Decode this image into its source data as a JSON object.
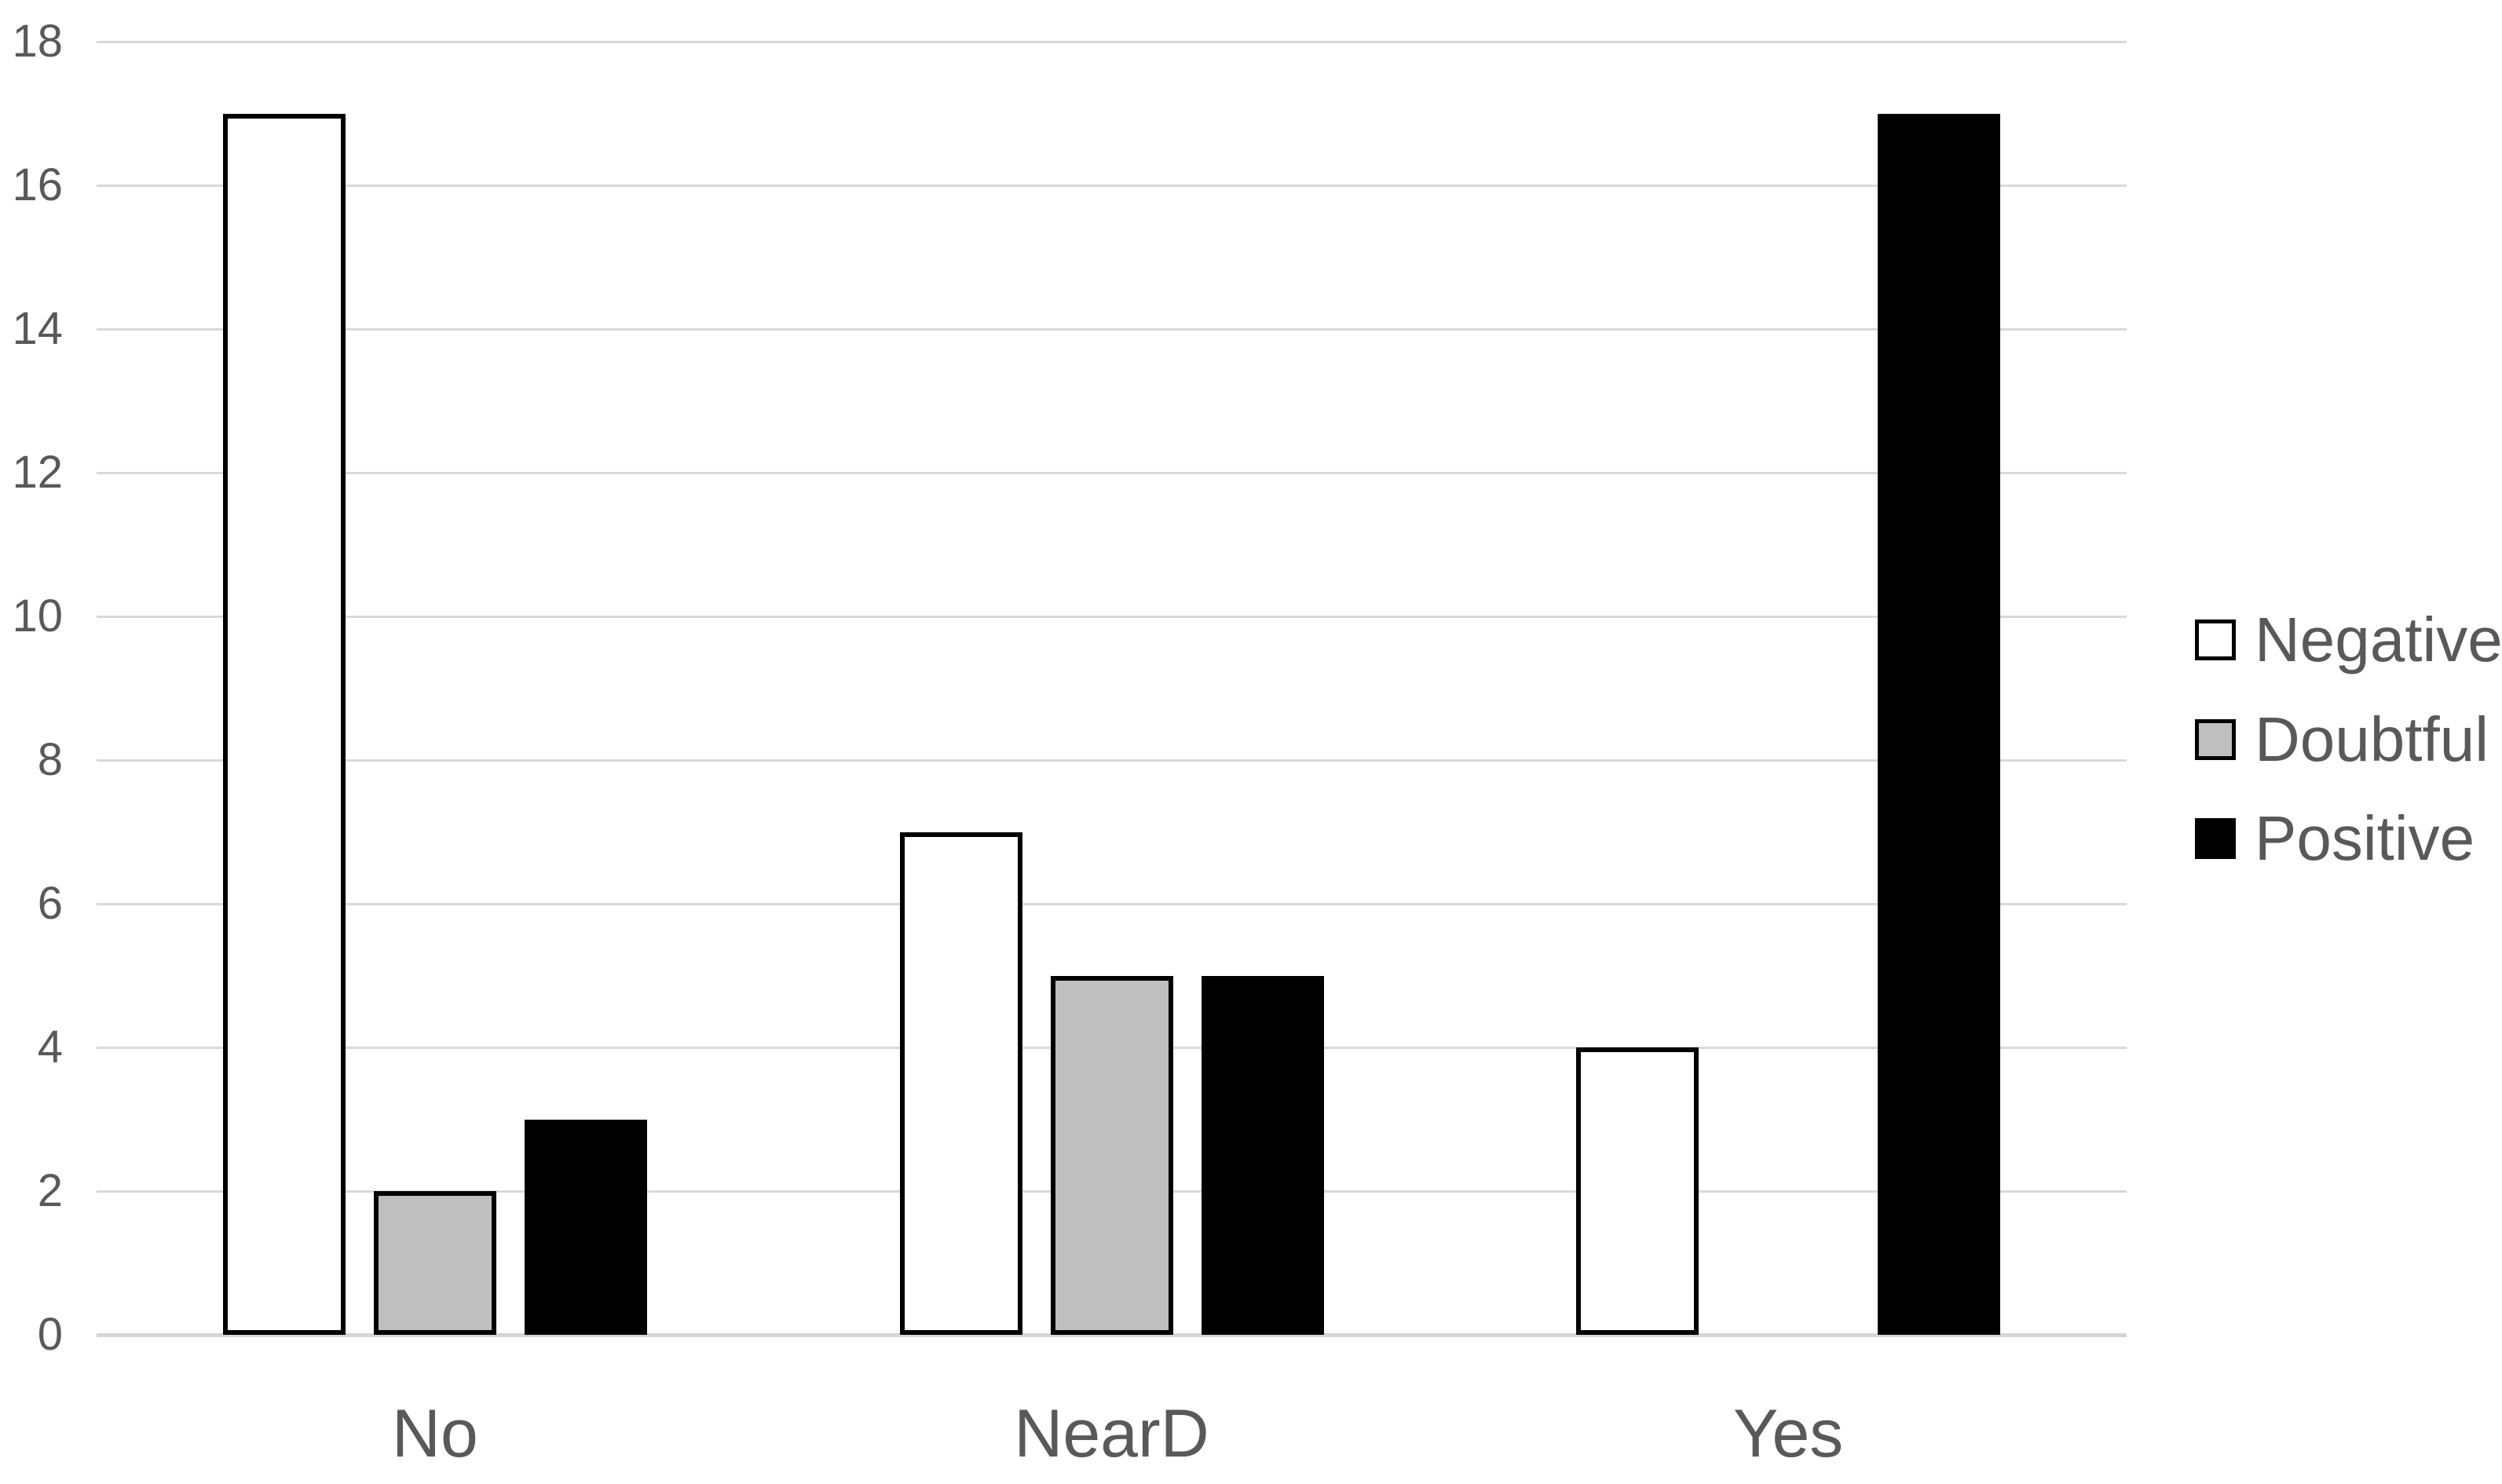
{
  "chart_data": {
    "type": "bar",
    "title": "",
    "xlabel": "",
    "ylabel": "",
    "categories": [
      "No",
      "NearD",
      "Yes"
    ],
    "series": [
      {
        "name": "Negative",
        "values": [
          17,
          7,
          4
        ],
        "fill": "#FFFFFF",
        "border": "#000000"
      },
      {
        "name": "Doubtful",
        "values": [
          2,
          5,
          0
        ],
        "fill": "#BFBFBF",
        "border": "#000000"
      },
      {
        "name": "Positive",
        "values": [
          3,
          5,
          17
        ],
        "fill": "#000000",
        "border": "#000000"
      }
    ],
    "ylim": [
      0,
      18
    ],
    "yticks": [
      0,
      2,
      4,
      6,
      8,
      10,
      12,
      14,
      16,
      18
    ],
    "grid": true,
    "legend_position": "right",
    "legend_items": [
      "Negative",
      "Doubtful",
      "Positive"
    ]
  },
  "styles": {
    "axis_label_color": "#595959",
    "category_label_color": "#595959",
    "legend_text_color": "#595959",
    "gridline_color": "#D9D9D9",
    "baseline_color": "#D6D6D6",
    "bar_border_color": "#000000",
    "background_color": "#FFFFFF"
  }
}
